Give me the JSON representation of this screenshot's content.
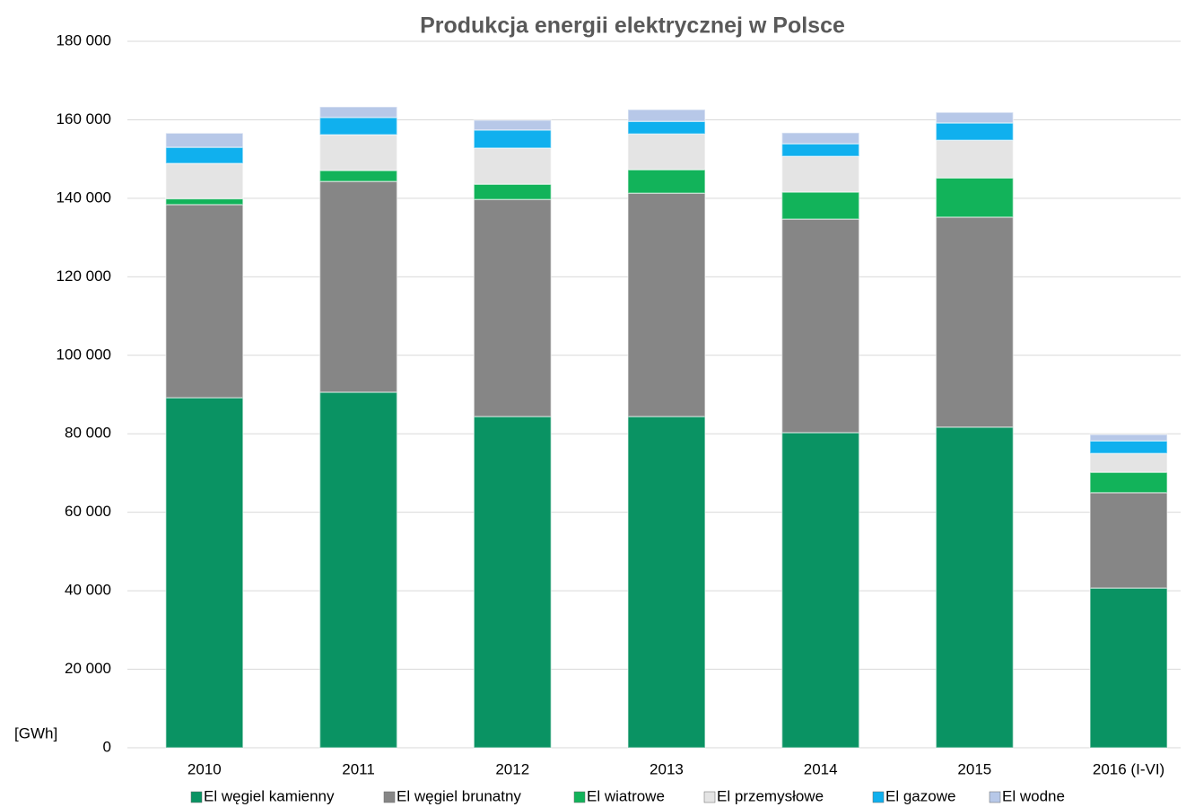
{
  "chart_data": {
    "type": "stacked_bar",
    "title": "Produkcja energii elektrycznej w Polsce",
    "y_label": "[GWh]",
    "categories": [
      "2010",
      "2011",
      "2012",
      "2013",
      "2014",
      "2015",
      "2016 (I-VI)"
    ],
    "series": [
      {
        "name": "El węgiel kamienny",
        "color": "#0a9363",
        "values": [
          89200,
          90600,
          84400,
          84400,
          80300,
          81700,
          40700
        ]
      },
      {
        "name": "El węgiel brunatny",
        "color": "#868686",
        "values": [
          49200,
          53700,
          55300,
          56900,
          54400,
          53500,
          24300
        ]
      },
      {
        "name": "El wiatrowe",
        "color": "#12b35a",
        "values": [
          1500,
          2800,
          3900,
          6000,
          6900,
          10000,
          5200
        ]
      },
      {
        "name": "El przemysłowe",
        "color": "#e4e4e4",
        "values": [
          9000,
          9100,
          9200,
          9100,
          9100,
          9600,
          4800
        ]
      },
      {
        "name": "El gazowe",
        "color": "#10b0ee",
        "values": [
          4100,
          4400,
          4600,
          3200,
          3200,
          4400,
          3200
        ]
      },
      {
        "name": "El wodne",
        "color": "#b7c8e8",
        "values": [
          3600,
          2700,
          2500,
          3000,
          2800,
          2700,
          1600
        ]
      }
    ],
    "ylim": [
      0,
      180000
    ],
    "yticks": [
      0,
      {
        "value": 20000,
        "label": "20 000"
      },
      {
        "value": 40000,
        "label": "40 000"
      },
      {
        "value": 60000,
        "label": "60 000"
      },
      {
        "value": 80000,
        "label": "80 000"
      },
      {
        "value": 100000,
        "label": "100 000"
      },
      {
        "value": 120000,
        "label": "120 000"
      },
      {
        "value": 140000,
        "label": "140 000"
      },
      {
        "value": 160000,
        "label": "160 000"
      },
      {
        "value": 180000,
        "label": "180 000"
      }
    ],
    "grid": true,
    "legend": "bottom"
  }
}
